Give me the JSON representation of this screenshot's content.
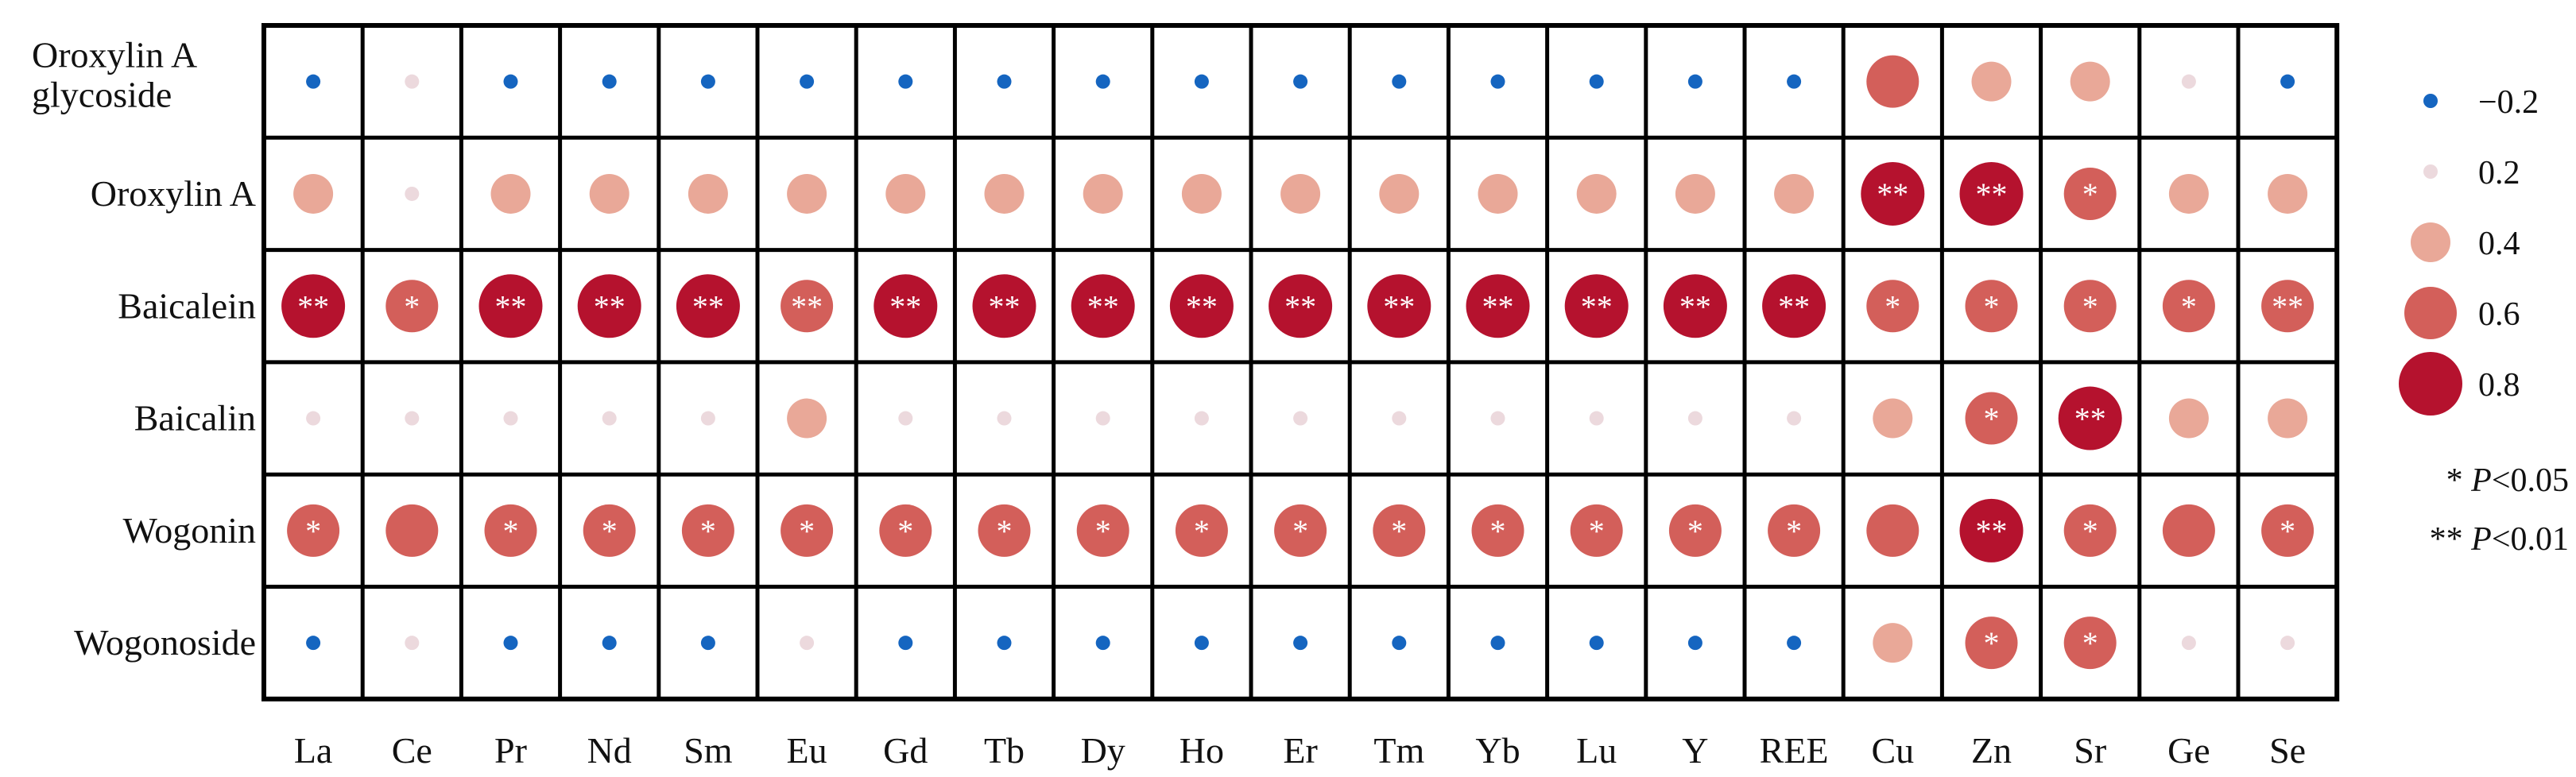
{
  "chart_data": {
    "type": "heatmap",
    "rows": [
      "Oroxylin A glycoside",
      "Oroxylin A",
      "Baicalein",
      "Baicalin",
      "Wogonin",
      "Wogonoside"
    ],
    "columns": [
      "La",
      "Ce",
      "Pr",
      "Nd",
      "Sm",
      "Eu",
      "Gd",
      "Tb",
      "Dy",
      "Ho",
      "Er",
      "Tm",
      "Yb",
      "Lu",
      "Y",
      "REE",
      "Cu",
      "Zn",
      "Sr",
      "Ge",
      "Se"
    ],
    "values": [
      [
        -0.2,
        0.2,
        -0.2,
        -0.2,
        -0.2,
        -0.2,
        -0.2,
        -0.2,
        -0.2,
        -0.2,
        -0.2,
        -0.2,
        -0.2,
        -0.2,
        -0.2,
        -0.2,
        0.6,
        0.4,
        0.4,
        0.2,
        -0.2
      ],
      [
        0.4,
        0.2,
        0.4,
        0.4,
        0.4,
        0.4,
        0.4,
        0.4,
        0.4,
        0.4,
        0.4,
        0.4,
        0.4,
        0.4,
        0.4,
        0.4,
        0.8,
        0.8,
        0.6,
        0.4,
        0.4
      ],
      [
        0.8,
        0.6,
        0.8,
        0.8,
        0.8,
        0.6,
        0.8,
        0.8,
        0.8,
        0.8,
        0.8,
        0.8,
        0.8,
        0.8,
        0.8,
        0.8,
        0.6,
        0.6,
        0.6,
        0.6,
        0.6
      ],
      [
        0.2,
        0.2,
        0.2,
        0.2,
        0.2,
        0.4,
        0.2,
        0.2,
        0.2,
        0.2,
        0.2,
        0.2,
        0.2,
        0.2,
        0.2,
        0.2,
        0.4,
        0.6,
        0.8,
        0.4,
        0.4
      ],
      [
        0.6,
        0.6,
        0.6,
        0.6,
        0.6,
        0.6,
        0.6,
        0.6,
        0.6,
        0.6,
        0.6,
        0.6,
        0.6,
        0.6,
        0.6,
        0.6,
        0.6,
        0.8,
        0.6,
        0.6,
        0.6
      ],
      [
        -0.2,
        0.2,
        -0.2,
        -0.2,
        -0.2,
        0.2,
        -0.2,
        -0.2,
        -0.2,
        -0.2,
        -0.2,
        -0.2,
        -0.2,
        -0.2,
        -0.2,
        -0.2,
        0.4,
        0.6,
        0.6,
        0.2,
        0.2
      ]
    ],
    "significance": [
      [
        "",
        "",
        "",
        "",
        "",
        "",
        "",
        "",
        "",
        "",
        "",
        "",
        "",
        "",
        "",
        "",
        "",
        "",
        "",
        "",
        ""
      ],
      [
        "",
        "",
        "",
        "",
        "",
        "",
        "",
        "",
        "",
        "",
        "",
        "",
        "",
        "",
        "",
        "",
        "**",
        "**",
        "*",
        "",
        ""
      ],
      [
        "**",
        "*",
        "**",
        "**",
        "**",
        "**",
        "**",
        "**",
        "**",
        "**",
        "**",
        "**",
        "**",
        "**",
        "**",
        "**",
        "*",
        "*",
        "*",
        "*",
        "**"
      ],
      [
        "",
        "",
        "",
        "",
        "",
        "",
        "",
        "",
        "",
        "",
        "",
        "",
        "",
        "",
        "",
        "",
        "",
        "*",
        "**",
        "",
        ""
      ],
      [
        "*",
        "",
        "*",
        "*",
        "*",
        "*",
        "*",
        "*",
        "*",
        "*",
        "*",
        "*",
        "*",
        "*",
        "*",
        "*",
        "",
        "**",
        "*",
        "",
        "*"
      ],
      [
        "",
        "",
        "",
        "",
        "",
        "",
        "",
        "",
        "",
        "",
        "",
        "",
        "",
        "",
        "",
        "",
        "",
        "*",
        "*",
        "",
        ""
      ]
    ],
    "legend": {
      "levels": [
        {
          "value": -0.2,
          "label": "−0.2",
          "color": "#1565c0"
        },
        {
          "value": 0.2,
          "label": "0.2",
          "color": "#ecd9dd"
        },
        {
          "value": 0.4,
          "label": "0.4",
          "color": "#e9a898"
        },
        {
          "value": 0.6,
          "label": "0.6",
          "color": "#d35f5a"
        },
        {
          "value": 0.8,
          "label": "0.8",
          "color": "#b5122e"
        }
      ],
      "significance_notes": [
        {
          "mark": "*",
          "text": "P<0.05"
        },
        {
          "mark": "**",
          "text": "P<0.01"
        }
      ]
    }
  }
}
